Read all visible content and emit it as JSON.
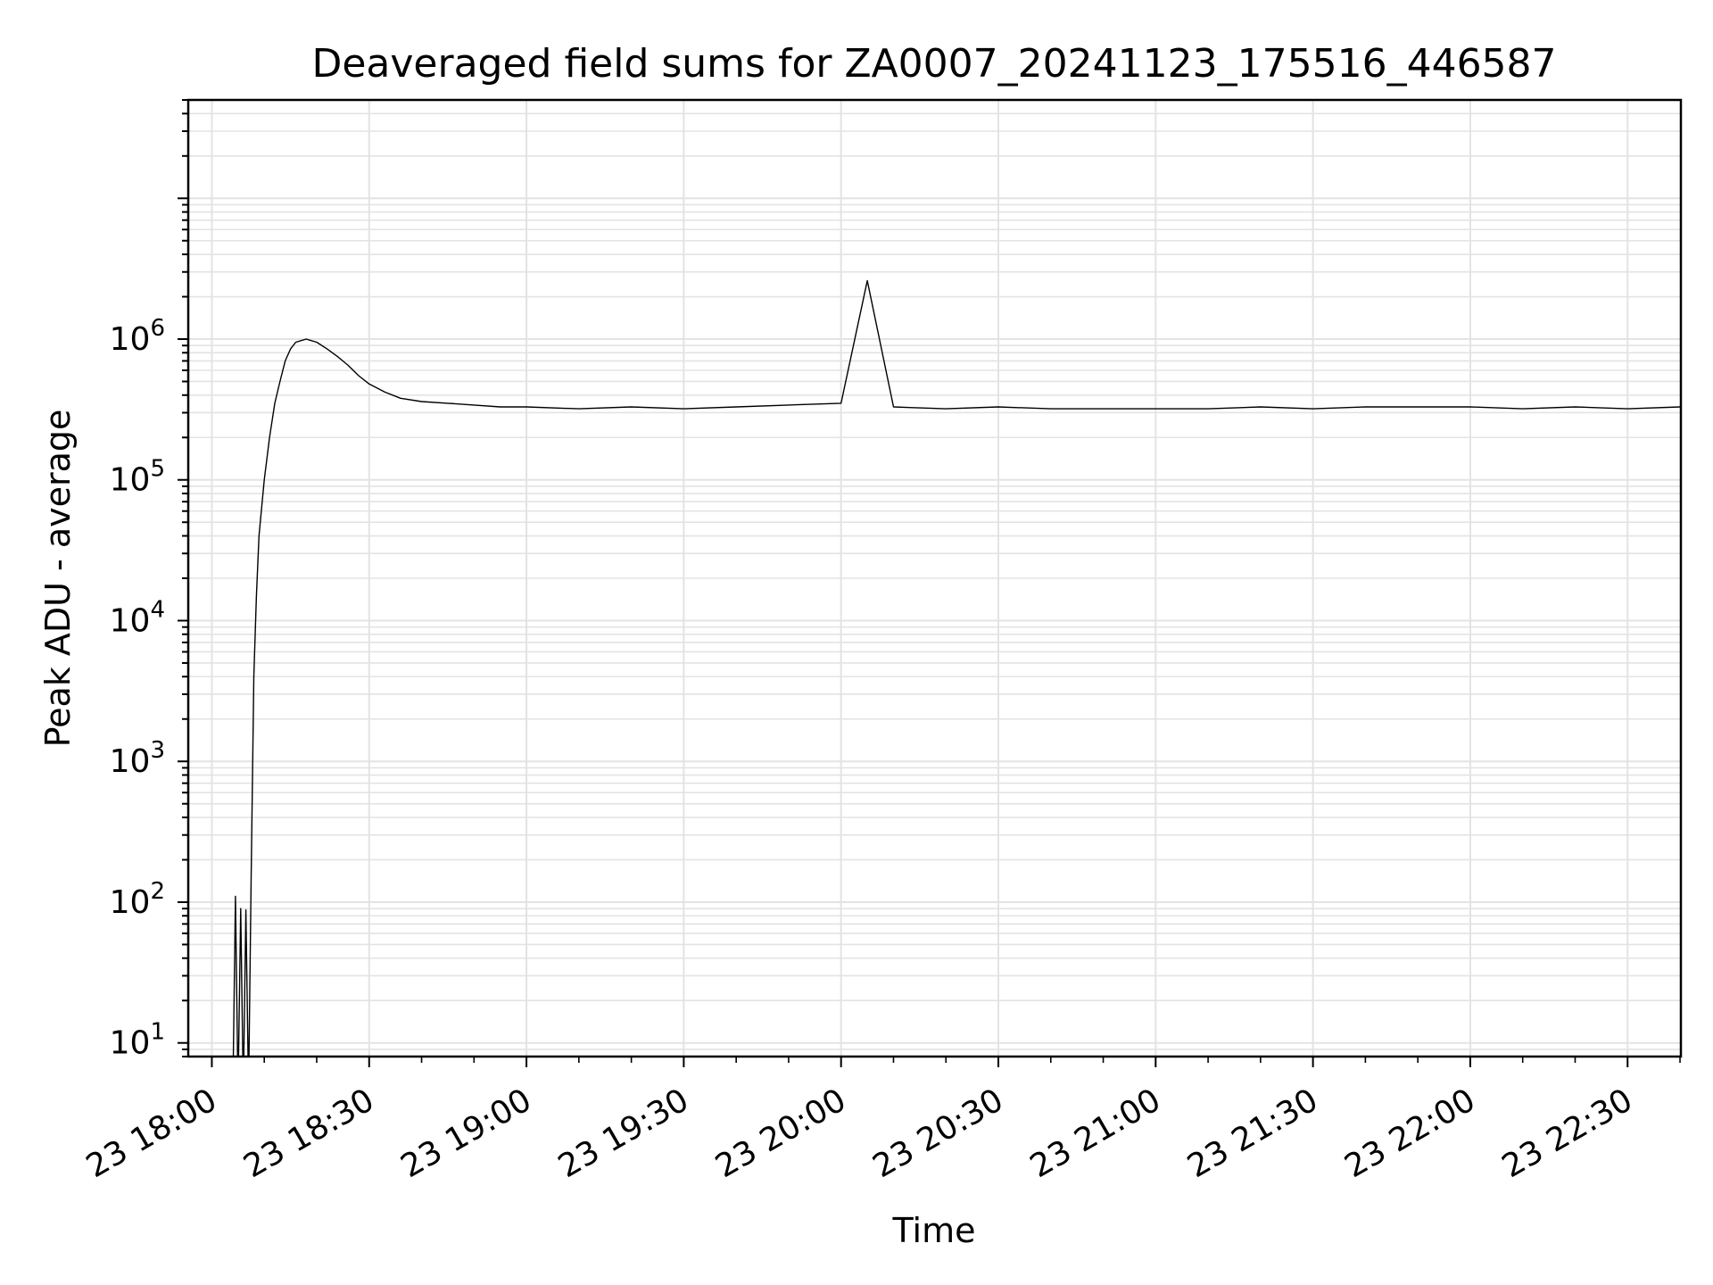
{
  "chart_data": {
    "type": "line",
    "title": "Deaveraged field sums for ZA0007_20241123_175516_446587",
    "xlabel": "Time",
    "ylabel": "Peak ADU - average",
    "yscale": "log",
    "ylim": [
      8,
      50000000
    ],
    "xlim": [
      "2024-11-23 17:55:30",
      "2024-11-23 22:40:10"
    ],
    "grid": true,
    "line_color": "#000000",
    "x_ticks": [
      "23 18:00",
      "23 18:30",
      "23 19:00",
      "23 19:30",
      "23 20:00",
      "23 20:30",
      "23 21:00",
      "23 21:30",
      "23 22:00",
      "23 22:30"
    ],
    "x_tick_times": [
      "2024-11-23 18:00",
      "2024-11-23 18:30",
      "2024-11-23 19:00",
      "2024-11-23 19:30",
      "2024-11-23 20:00",
      "2024-11-23 20:30",
      "2024-11-23 21:00",
      "2024-11-23 21:30",
      "2024-11-23 22:00",
      "2024-11-23 22:30"
    ],
    "y_ticks": [
      {
        "base": "10",
        "exp": "1"
      },
      {
        "base": "10",
        "exp": "2"
      },
      {
        "base": "10",
        "exp": "3"
      },
      {
        "base": "10",
        "exp": "4"
      },
      {
        "base": "10",
        "exp": "5"
      },
      {
        "base": "10",
        "exp": "6"
      }
    ],
    "series": [
      {
        "x": [
          "2024-11-23 18:04",
          "2024-11-23 18:04:30",
          "2024-11-23 18:05",
          "2024-11-23 18:05:30",
          "2024-11-23 18:06",
          "2024-11-23 18:06:30",
          "2024-11-23 18:07",
          "2024-11-23 18:07:30",
          "2024-11-23 18:08",
          "2024-11-23 18:08:30",
          "2024-11-23 18:09",
          "2024-11-23 18:10",
          "2024-11-23 18:11",
          "2024-11-23 18:12",
          "2024-11-23 18:13",
          "2024-11-23 18:14",
          "2024-11-23 18:15",
          "2024-11-23 18:16",
          "2024-11-23 18:18",
          "2024-11-23 18:20",
          "2024-11-23 18:22",
          "2024-11-23 18:24",
          "2024-11-23 18:26",
          "2024-11-23 18:28",
          "2024-11-23 18:30",
          "2024-11-23 18:33",
          "2024-11-23 18:36",
          "2024-11-23 18:40",
          "2024-11-23 18:45",
          "2024-11-23 18:50",
          "2024-11-23 18:55",
          "2024-11-23 19:00",
          "2024-11-23 19:10",
          "2024-11-23 19:20",
          "2024-11-23 19:30",
          "2024-11-23 19:40",
          "2024-11-23 19:50",
          "2024-11-23 20:00",
          "2024-11-23 20:05",
          "2024-11-23 20:10",
          "2024-11-23 20:20",
          "2024-11-23 20:30",
          "2024-11-23 20:40",
          "2024-11-23 20:50",
          "2024-11-23 21:00",
          "2024-11-23 21:10",
          "2024-11-23 21:20",
          "2024-11-23 21:30",
          "2024-11-23 21:40",
          "2024-11-23 21:50",
          "2024-11-23 22:00",
          "2024-11-23 22:10",
          "2024-11-23 22:20",
          "2024-11-23 22:30",
          "2024-11-23 22:40"
        ],
        "y": [
          0,
          110,
          0,
          90,
          0,
          88,
          0,
          150,
          4000,
          15000,
          40000,
          100000,
          200000,
          350000,
          500000,
          700000,
          850000,
          950000,
          1000000,
          950000,
          850000,
          750000,
          650000,
          550000,
          480000,
          420000,
          380000,
          360000,
          350000,
          340000,
          330000,
          330000,
          320000,
          330000,
          320000,
          330000,
          340000,
          350000,
          2600000,
          330000,
          320000,
          330000,
          320000,
          320000,
          320000,
          320000,
          330000,
          320000,
          330000,
          330000,
          330000,
          320000,
          330000,
          320000,
          330000
        ]
      }
    ],
    "annotations": []
  }
}
